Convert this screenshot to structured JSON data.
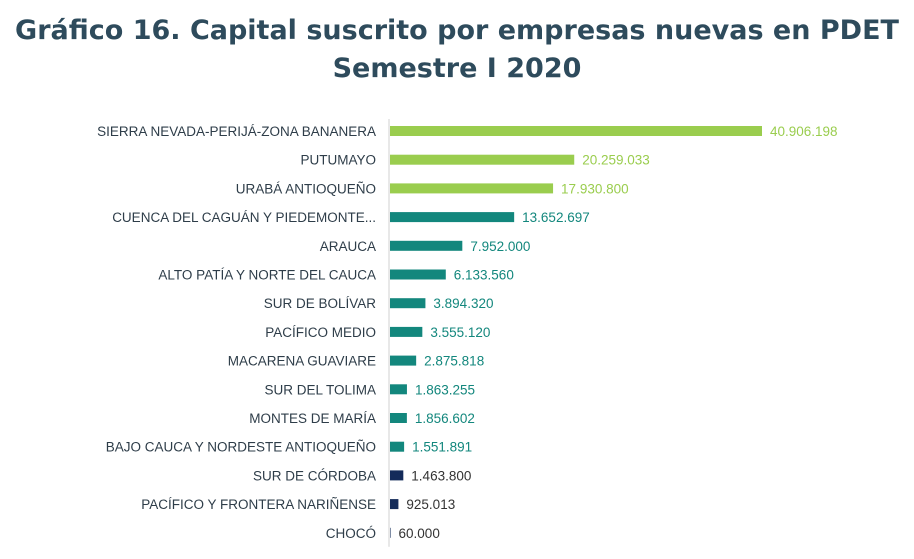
{
  "chart_data": {
    "type": "bar",
    "orientation": "horizontal",
    "title": [
      "Gráfico 16. Capital suscrito por empresas nuevas en PDET",
      "Semestre I 2020"
    ],
    "categories": [
      "SIERRA NEVADA-PERIJÁ-ZONA BANANERA",
      "PUTUMAYO",
      "URABÁ ANTIOQUEÑO",
      "CUENCA DEL CAGUÁN Y PIEDEMONTE...",
      "ARAUCA",
      "ALTO PATÍA Y NORTE DEL CAUCA",
      "SUR DE BOLÍVAR",
      "PACÍFICO MEDIO",
      "MACARENA GUAVIARE",
      "SUR DEL TOLIMA",
      "MONTES DE MARÍA",
      "BAJO CAUCA Y NORDESTE ANTIOQUEÑO",
      "SUR DE CÓRDOBA",
      "PACÍFICO Y FRONTERA NARIÑENSE",
      "CHOCÓ"
    ],
    "values": [
      40906198,
      20259033,
      17930800,
      13652697,
      7952000,
      6133560,
      3894320,
      3555120,
      2875818,
      1863255,
      1856602,
      1551891,
      1463800,
      925013,
      60000
    ],
    "value_labels": [
      "40.906.198",
      "20.259.033",
      "17.930.800",
      "13.652.697",
      "7.952.000",
      "6.133.560",
      "3.894.320",
      "3.555.120",
      "2.875.818",
      "1.863.255",
      "1.856.602",
      "1.551.891",
      "1.463.800",
      "925.013",
      "60.000"
    ],
    "bar_colors": [
      "#9acd4e",
      "#9acd4e",
      "#9acd4e",
      "#13877d",
      "#13877d",
      "#13877d",
      "#13877d",
      "#13877d",
      "#13877d",
      "#13877d",
      "#13877d",
      "#13877d",
      "#142b5a",
      "#142b5a",
      "#142b5a"
    ],
    "label_colors": [
      "#9acd4e",
      "#9acd4e",
      "#9acd4e",
      "#13877d",
      "#13877d",
      "#13877d",
      "#13877d",
      "#13877d",
      "#13877d",
      "#13877d",
      "#13877d",
      "#13877d",
      "#333333",
      "#333333",
      "#333333"
    ],
    "xlim": [
      0,
      48000000
    ],
    "grid": false,
    "legend": "none"
  },
  "colors": {
    "title": "#2e4b5c",
    "category_text": "#2e3d49",
    "axis_line": "#d0d0d0"
  }
}
